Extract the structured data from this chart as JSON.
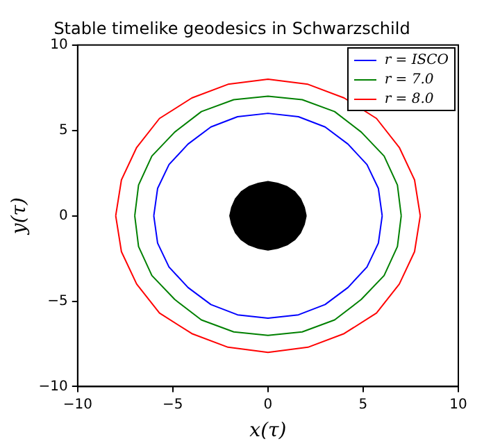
{
  "chart_data": {
    "type": "line",
    "title": "Stable timelike geodesics in Schwarzschild",
    "xlabel": "x(τ)",
    "ylabel": "y(τ)",
    "xlim": [
      -10,
      10
    ],
    "ylim": [
      -10,
      10
    ],
    "xticks": [
      {
        "value": -10,
        "label": "−10"
      },
      {
        "value": -5,
        "label": "−5"
      },
      0,
      5,
      10
    ],
    "yticks": [
      {
        "value": -10,
        "label": "−10"
      },
      {
        "value": -5,
        "label": "−5"
      },
      0,
      5,
      10
    ],
    "grid": false,
    "legend": "top right",
    "marker": "none",
    "line_style": "solid",
    "series": [
      {
        "name": "r = ISCO",
        "color": "#0000ff",
        "x": [
          -6,
          -5.8,
          -5.2,
          -4.2,
          -3,
          -1.6,
          0,
          1.6,
          3,
          4.2,
          5.2,
          5.8,
          6,
          null,
          -6,
          -5.8,
          -5.2,
          -4.2,
          -3,
          -1.6,
          0,
          1.6,
          3,
          4.2,
          5.2,
          5.8,
          6
        ],
        "values": [
          0,
          1.6,
          3,
          4.2,
          5.2,
          5.8,
          6,
          5.8,
          5.2,
          4.2,
          3,
          1.6,
          0,
          null,
          0,
          -1.6,
          -3,
          -4.2,
          -5.2,
          -5.8,
          -6,
          -5.8,
          -5.2,
          -4.2,
          -3,
          -1.6,
          0
        ]
      },
      {
        "name": "r = 7.0",
        "color": "#008000",
        "x": [
          -7,
          -6.8,
          -6.1,
          -4.9,
          -3.5,
          -1.8,
          0,
          1.8,
          3.5,
          4.9,
          6.1,
          6.8,
          7,
          null,
          -7,
          -6.8,
          -6.1,
          -4.9,
          -3.5,
          -1.8,
          0,
          1.8,
          3.5,
          4.9,
          6.1,
          6.8,
          7
        ],
        "values": [
          0,
          1.8,
          3.5,
          4.9,
          6.1,
          6.8,
          7,
          6.8,
          6.1,
          4.9,
          3.5,
          1.8,
          0,
          null,
          0,
          -1.8,
          -3.5,
          -4.9,
          -6.1,
          -6.8,
          -7,
          -6.8,
          -6.1,
          -4.9,
          -3.5,
          -1.8,
          0
        ]
      },
      {
        "name": "r = 8.0",
        "color": "#ff0000",
        "x": [
          -8,
          -7.7,
          -6.9,
          -5.7,
          -4,
          -2.1,
          0,
          2.1,
          4,
          5.7,
          6.9,
          7.7,
          8,
          null,
          -8,
          -7.7,
          -6.9,
          -5.7,
          -4,
          -2.1,
          0,
          2.1,
          4,
          5.7,
          6.9,
          7.7,
          8
        ],
        "values": [
          0,
          2.1,
          4,
          5.7,
          6.9,
          7.7,
          8,
          7.7,
          6.9,
          5.7,
          4,
          2.1,
          0,
          null,
          0,
          -2.1,
          -4,
          -5.7,
          -6.9,
          -7.7,
          -8,
          -7.7,
          -6.9,
          -5.7,
          -4,
          -2.1,
          0
        ]
      },
      {
        "type": "area",
        "color": "#000000",
        "x": [
          2,
          1.9,
          1.7,
          1.4,
          1,
          0.5,
          0,
          -0.5,
          -1,
          -1.4,
          -1.7,
          -1.9,
          -2,
          -1.9,
          -1.7,
          -1.4,
          -1,
          -0.5,
          0,
          0.5,
          1,
          1.4,
          1.7,
          1.9,
          2
        ],
        "values": [
          0,
          0.5,
          1,
          1.4,
          1.7,
          1.9,
          2,
          1.9,
          1.7,
          1.4,
          1,
          0.5,
          0,
          -0.5,
          -1,
          -1.4,
          -1.7,
          -1.9,
          -2,
          -1.9,
          -1.7,
          -1.4,
          -1,
          -0.5,
          0
        ]
      }
    ]
  }
}
